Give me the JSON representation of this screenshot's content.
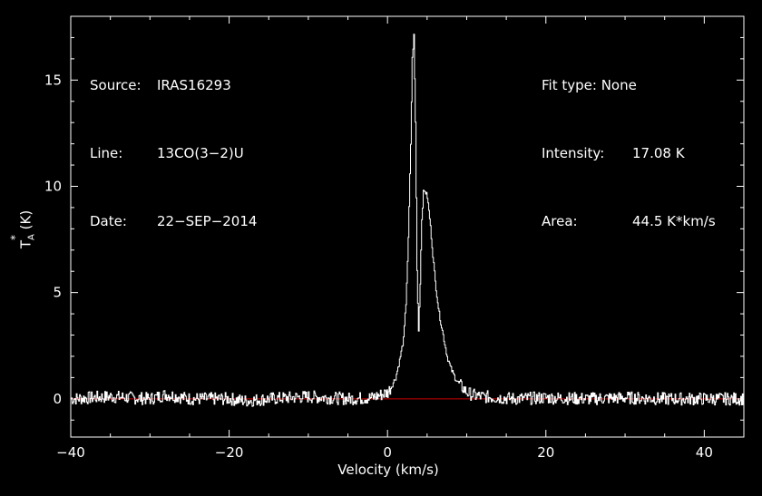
{
  "header": {
    "source_key": "Source:",
    "source_val": "IRAS16293",
    "line_key": "Line:",
    "line_val": "13CO(3−2)U",
    "date_key": "Date:",
    "date_val": "22−SEP−2014",
    "fit_key": "Fit type:",
    "fit_val": "None",
    "intensity_key": "Intensity:",
    "intensity_val": "17.08 K",
    "area_key": "Area:",
    "area_val": "44.5 K*km/s"
  },
  "chart_data": {
    "type": "line",
    "title": "",
    "xlabel": "Velocity (km/s)",
    "ylabel_main": "T",
    "ylabel_sub": "A",
    "ylabel_sup": "*",
    "ylabel_unit": "(K)",
    "xlim": [
      -40,
      45
    ],
    "ylim": [
      -1.8,
      18
    ],
    "x_ticks": [
      -40,
      -20,
      0,
      20,
      40
    ],
    "x_tick_labels": [
      "−40",
      "−20",
      "0",
      "20",
      "40"
    ],
    "y_ticks": [
      0,
      5,
      10,
      15
    ],
    "y_tick_labels": [
      "0",
      "5",
      "10",
      "15"
    ],
    "baseline": 0,
    "colors": {
      "spectrum": "#ffffff",
      "baseline": "#cc0000",
      "axes": "#ffffff",
      "background": "#000000"
    },
    "series": [
      {
        "x": [
          -40,
          -35,
          -30,
          -28,
          -25,
          -20,
          -18,
          -15,
          -10,
          -5,
          -2,
          0,
          0.5,
          1,
          1.5,
          2,
          2.3,
          2.6,
          2.9,
          3.1,
          3.3,
          3.5,
          3.7,
          3.9,
          4.1,
          4.3,
          4.5,
          4.7,
          5,
          5.3,
          5.6,
          6,
          6.5,
          7,
          7.5,
          8,
          8.5,
          9,
          9.5,
          10,
          11,
          12,
          14,
          16,
          20,
          25,
          30,
          35,
          40,
          45
        ],
        "y": [
          0,
          0.1,
          0,
          0.2,
          0,
          0,
          -0.1,
          0,
          0.1,
          0,
          0.05,
          0.3,
          0.6,
          1.0,
          1.8,
          2.8,
          4.5,
          7.5,
          12.0,
          16.0,
          17.08,
          13.0,
          6.0,
          3.2,
          5.5,
          8.5,
          9.7,
          9.8,
          9.5,
          8.5,
          7.2,
          5.5,
          4.0,
          3.0,
          2.0,
          1.4,
          1.0,
          0.7,
          0.5,
          0.3,
          0.15,
          0.1,
          0.05,
          0,
          0.05,
          0,
          0.05,
          0,
          0,
          0
        ]
      }
    ]
  }
}
